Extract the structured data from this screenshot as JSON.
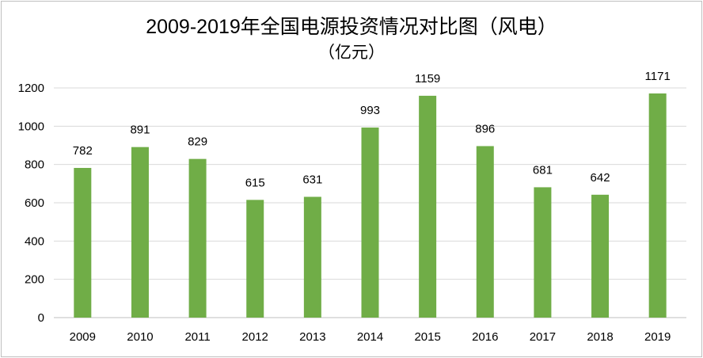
{
  "chart_data": {
    "type": "bar",
    "title": "2009-2019年全国电源投资情况对比图（风电）",
    "subtitle": "（亿元）",
    "categories": [
      "2009",
      "2010",
      "2011",
      "2012",
      "2013",
      "2014",
      "2015",
      "2016",
      "2017",
      "2018",
      "2019"
    ],
    "values": [
      782,
      891,
      829,
      615,
      631,
      993,
      1159,
      896,
      681,
      642,
      1171
    ],
    "yticks": [
      "0",
      "200",
      "400",
      "600",
      "800",
      "1000",
      "1200"
    ],
    "ylim": [
      0,
      1200
    ],
    "grid": true,
    "legend": "none",
    "bar_color": "#70ad47",
    "grid_color": "#d9d9d9"
  }
}
